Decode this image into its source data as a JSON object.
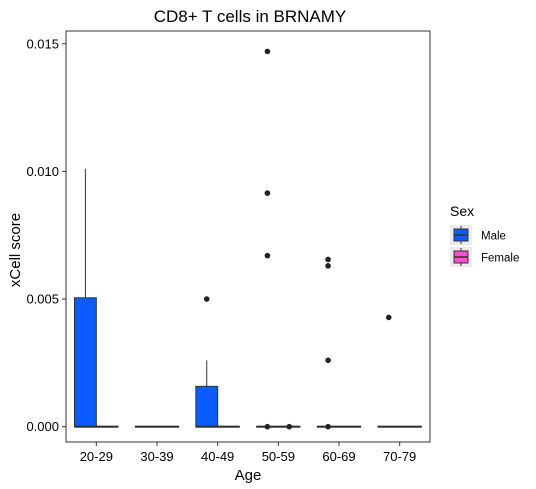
{
  "chart_data": {
    "type": "boxplot",
    "title": "CD8+ T cells in BRNAMY",
    "xlabel": "Age",
    "ylabel": "xCell score",
    "categories": [
      "20-29",
      "30-39",
      "40-49",
      "50-59",
      "60-69",
      "70-79"
    ],
    "ylim": [
      -0.0006,
      0.0155
    ],
    "yticks": [
      0.0,
      0.005,
      0.01,
      0.015
    ],
    "ytick_labels": [
      "0.000",
      "0.005",
      "0.010",
      "0.015"
    ],
    "grid": false,
    "legend": {
      "title": "Sex",
      "position": "right"
    },
    "series": [
      {
        "name": "Male",
        "color": "#0a5cff",
        "boxes": [
          {
            "category": "20-29",
            "q1": 0.0,
            "median": 0.0,
            "q3": 0.00505,
            "whisker_low": 0.0,
            "whisker_high": 0.0101,
            "outliers": []
          },
          {
            "category": "30-39",
            "q1": 0.0,
            "median": 0.0,
            "q3": 0.0,
            "whisker_low": 0.0,
            "whisker_high": 0.0,
            "outliers": []
          },
          {
            "category": "40-49",
            "q1": 0.0,
            "median": 0.0,
            "q3": 0.00158,
            "whisker_low": 0.0,
            "whisker_high": 0.0026,
            "outliers": [
              0.005
            ]
          },
          {
            "category": "50-59",
            "q1": 0.0,
            "median": 0.0,
            "q3": 0.0,
            "whisker_low": 0.0,
            "whisker_high": 0.0,
            "outliers": [
              0.0147,
              0.00915,
              0.0067,
              0.0
            ]
          },
          {
            "category": "60-69",
            "q1": 0.0,
            "median": 0.0,
            "q3": 0.0,
            "whisker_low": 0.0,
            "whisker_high": 0.0,
            "outliers": [
              0.00655,
              0.0063,
              0.0026,
              0.0
            ]
          },
          {
            "category": "70-79",
            "q1": 0.0,
            "median": 0.0,
            "q3": 0.0,
            "whisker_low": 0.0,
            "whisker_high": 0.0,
            "outliers": [
              0.00428
            ]
          }
        ]
      },
      {
        "name": "Female",
        "color": "#ff4dd2",
        "boxes": [
          {
            "category": "20-29",
            "q1": 0.0,
            "median": 0.0,
            "q3": 0.0,
            "whisker_low": 0.0,
            "whisker_high": 0.0,
            "outliers": []
          },
          {
            "category": "30-39",
            "q1": 0.0,
            "median": 0.0,
            "q3": 0.0,
            "whisker_low": 0.0,
            "whisker_high": 0.0,
            "outliers": []
          },
          {
            "category": "40-49",
            "q1": 0.0,
            "median": 0.0,
            "q3": 0.0,
            "whisker_low": 0.0,
            "whisker_high": 0.0,
            "outliers": []
          },
          {
            "category": "50-59",
            "q1": 0.0,
            "median": 0.0,
            "q3": 0.0,
            "whisker_low": 0.0,
            "whisker_high": 0.0,
            "outliers": [
              0.0
            ]
          },
          {
            "category": "60-69",
            "q1": 0.0,
            "median": 0.0,
            "q3": 0.0,
            "whisker_low": 0.0,
            "whisker_high": 0.0,
            "outliers": []
          },
          {
            "category": "70-79",
            "q1": 0.0,
            "median": 0.0,
            "q3": 0.0,
            "whisker_low": 0.0,
            "whisker_high": 0.0,
            "outliers": []
          }
        ]
      }
    ]
  }
}
